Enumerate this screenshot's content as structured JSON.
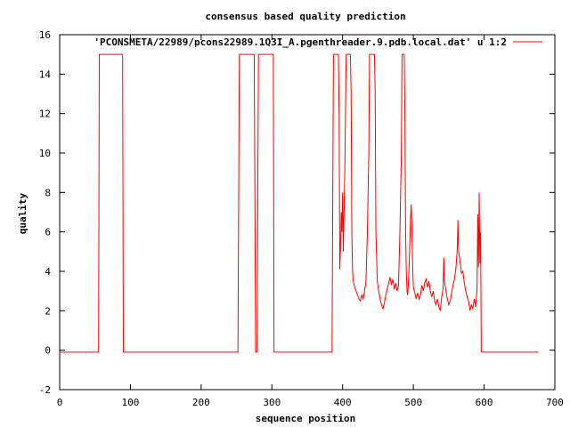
{
  "chart_data": {
    "type": "line",
    "title": "consensus based quality prediction",
    "xlabel": "sequence position",
    "ylabel": "quality",
    "xlim": [
      0,
      700
    ],
    "ylim": [
      -2,
      16
    ],
    "xticks": [
      0,
      100,
      200,
      300,
      400,
      500,
      600,
      700
    ],
    "yticks": [
      -2,
      0,
      2,
      4,
      6,
      8,
      10,
      12,
      14,
      16
    ],
    "grid": false,
    "legend_position": "top-right",
    "series_color": "#ff0000",
    "series": [
      {
        "name": "'PCONSMETA/22989/pcons22989.1Q3I_A.pgenthreader.9.pdb.local.dat' u 1:2",
        "points": [
          [
            1,
            -0.1
          ],
          [
            55,
            -0.1
          ],
          [
            56,
            15
          ],
          [
            89,
            15
          ],
          [
            90,
            -0.1
          ],
          [
            252,
            -0.1
          ],
          [
            253,
            7.5
          ],
          [
            254,
            15
          ],
          [
            275,
            15
          ],
          [
            276,
            7.5
          ],
          [
            277,
            -0.1
          ],
          [
            279,
            -0.1
          ],
          [
            280,
            7.5
          ],
          [
            281,
            15
          ],
          [
            302,
            15
          ],
          [
            303,
            -0.1
          ],
          [
            385,
            -0.1
          ],
          [
            386,
            7.5
          ],
          [
            387,
            15
          ],
          [
            394,
            15
          ],
          [
            395,
            12
          ],
          [
            396,
            4.1
          ],
          [
            397,
            5.2
          ],
          [
            398,
            7
          ],
          [
            399,
            6
          ],
          [
            400,
            8
          ],
          [
            401,
            5
          ],
          [
            402,
            7
          ],
          [
            403,
            9
          ],
          [
            404,
            12
          ],
          [
            405,
            15
          ],
          [
            411,
            15
          ],
          [
            412,
            13
          ],
          [
            413,
            6
          ],
          [
            414,
            4
          ],
          [
            415,
            3.5
          ],
          [
            417,
            3.2
          ],
          [
            419,
            3.0
          ],
          [
            421,
            2.8
          ],
          [
            423,
            2.6
          ],
          [
            425,
            2.5
          ],
          [
            427,
            2.8
          ],
          [
            429,
            2.6
          ],
          [
            431,
            3.0
          ],
          [
            433,
            3.5
          ],
          [
            435,
            6
          ],
          [
            437,
            10
          ],
          [
            438,
            15
          ],
          [
            445,
            15
          ],
          [
            446,
            13
          ],
          [
            447,
            6
          ],
          [
            449,
            3.5
          ],
          [
            451,
            3.0
          ],
          [
            453,
            2.6
          ],
          [
            455,
            2.3
          ],
          [
            457,
            2.1
          ],
          [
            459,
            2.4
          ],
          [
            461,
            2.8
          ],
          [
            463,
            3.1
          ],
          [
            465,
            3.4
          ],
          [
            467,
            3.7
          ],
          [
            469,
            3.3
          ],
          [
            471,
            3.6
          ],
          [
            473,
            3.1
          ],
          [
            475,
            3.4
          ],
          [
            477,
            3.0
          ],
          [
            479,
            3.3
          ],
          [
            481,
            6
          ],
          [
            483,
            10
          ],
          [
            484,
            15
          ],
          [
            487,
            15
          ],
          [
            488,
            12
          ],
          [
            489,
            6
          ],
          [
            490,
            4
          ],
          [
            491,
            3.0
          ],
          [
            492,
            2.8
          ],
          [
            493,
            3.4
          ],
          [
            494,
            4.3
          ],
          [
            495,
            5.5
          ],
          [
            496,
            6.7
          ],
          [
            497,
            7.4
          ],
          [
            498,
            6.1
          ],
          [
            499,
            4.2
          ],
          [
            500,
            3.2
          ],
          [
            502,
            2.9
          ],
          [
            504,
            2.6
          ],
          [
            506,
            2.9
          ],
          [
            508,
            2.6
          ],
          [
            510,
            2.8
          ],
          [
            512,
            3.3
          ],
          [
            514,
            3.0
          ],
          [
            516,
            3.4
          ],
          [
            518,
            3.6
          ],
          [
            520,
            3.2
          ],
          [
            522,
            3.5
          ],
          [
            524,
            3.0
          ],
          [
            526,
            2.7
          ],
          [
            528,
            3.0
          ],
          [
            530,
            2.5
          ],
          [
            532,
            2.3
          ],
          [
            534,
            2.6
          ],
          [
            536,
            2.2
          ],
          [
            538,
            2.0
          ],
          [
            540,
            2.7
          ],
          [
            542,
            3.1
          ],
          [
            543,
            4.7
          ],
          [
            544,
            3.5
          ],
          [
            546,
            3.0
          ],
          [
            548,
            2.6
          ],
          [
            550,
            2.3
          ],
          [
            552,
            2.5
          ],
          [
            554,
            2.9
          ],
          [
            556,
            3.3
          ],
          [
            558,
            3.6
          ],
          [
            560,
            4.1
          ],
          [
            562,
            5.1
          ],
          [
            563,
            6.6
          ],
          [
            564,
            5.0
          ],
          [
            566,
            4.5
          ],
          [
            568,
            3.9
          ],
          [
            570,
            4.0
          ],
          [
            572,
            3.4
          ],
          [
            574,
            3.0
          ],
          [
            576,
            2.7
          ],
          [
            578,
            2.5
          ],
          [
            580,
            2.0
          ],
          [
            582,
            2.3
          ],
          [
            584,
            2.1
          ],
          [
            586,
            2.6
          ],
          [
            588,
            2.2
          ],
          [
            590,
            3.1
          ],
          [
            591,
            6.9
          ],
          [
            592,
            4.2
          ],
          [
            593,
            8.0
          ],
          [
            594,
            4.4
          ],
          [
            595,
            6.0
          ],
          [
            596,
            -0.1
          ],
          [
            677,
            -0.1
          ]
        ]
      }
    ]
  }
}
